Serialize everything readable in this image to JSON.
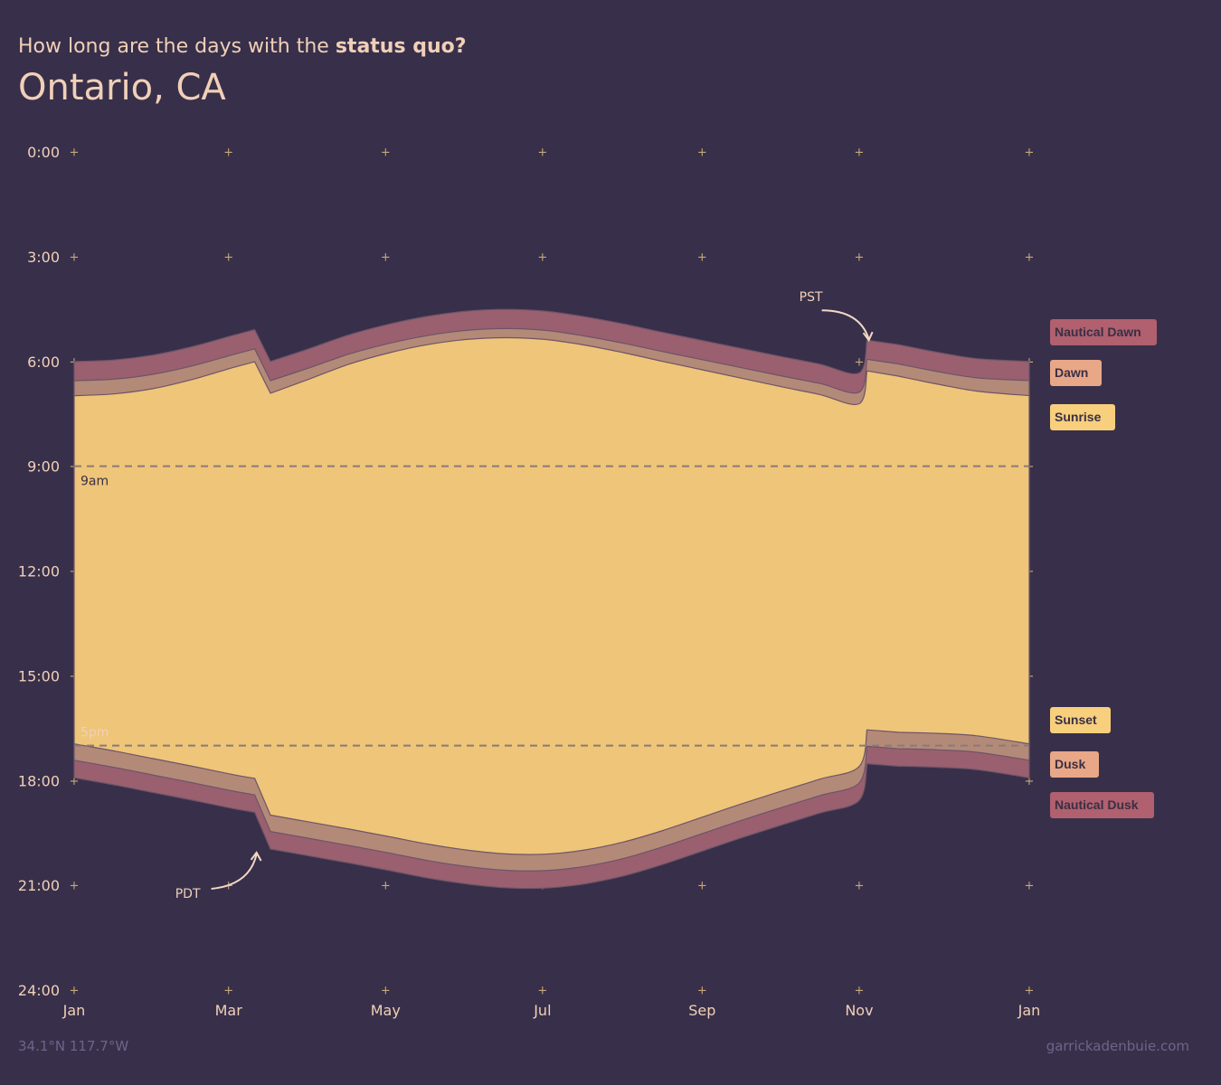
{
  "header": {
    "subtitle_pre": "How long are the days with the",
    "subtitle_bold": "status quo?",
    "title": "Ontario, CA"
  },
  "footer": {
    "coords": "34.1°N 117.7°W",
    "credit": "garrickadenbuie.com"
  },
  "colors": {
    "background": "#38304a",
    "nautical": "#9a6070",
    "civil": "#b38a78",
    "day": "#eec579",
    "band_outline": "#6e5468",
    "text": "#f1d0b8",
    "legend_nautical": "#b0606e",
    "legend_civil": "#e8a787",
    "legend_day": "#f7cf7d"
  },
  "chart_data": {
    "type": "area",
    "x_axis": {
      "ticks": [
        "Jan",
        "Mar",
        "May",
        "Jul",
        "Sep",
        "Nov",
        "Jan"
      ],
      "tick_days": [
        0,
        59,
        119,
        179,
        240,
        300,
        365
      ],
      "range_days": [
        0,
        365
      ]
    },
    "y_axis": {
      "reversed": true,
      "range_hours": [
        0,
        24
      ],
      "ticks": [
        "0:00",
        "3:00",
        "6:00",
        "9:00",
        "12:00",
        "15:00",
        "18:00",
        "21:00",
        "24:00"
      ],
      "tick_hours": [
        0,
        3,
        6,
        9,
        12,
        15,
        18,
        21,
        24
      ]
    },
    "dst_periods": [
      {
        "label": "PDT",
        "start_day": 69,
        "end_day": 303
      }
    ],
    "series_hours": {
      "day": [
        0,
        15,
        30,
        45,
        60,
        69,
        75,
        90,
        105,
        120,
        135,
        150,
        165,
        180,
        195,
        210,
        225,
        240,
        255,
        270,
        285,
        300,
        303,
        315,
        330,
        345,
        365
      ],
      "nautical_dawn": [
        6.0,
        5.96,
        5.82,
        5.58,
        5.27,
        5.09,
        6.0,
        5.63,
        5.24,
        4.94,
        4.71,
        4.56,
        4.51,
        4.56,
        4.72,
        4.93,
        5.17,
        5.4,
        5.63,
        5.86,
        6.08,
        6.33,
        5.39,
        5.52,
        5.74,
        5.92,
        6.0
      ],
      "civil_dawn": [
        6.55,
        6.51,
        6.37,
        6.13,
        5.82,
        5.64,
        6.55,
        6.18,
        5.79,
        5.49,
        5.26,
        5.11,
        5.06,
        5.11,
        5.27,
        5.48,
        5.72,
        5.95,
        6.18,
        6.41,
        6.63,
        6.88,
        5.94,
        6.07,
        6.29,
        6.47,
        6.55
      ],
      "sunrise": [
        6.98,
        6.93,
        6.78,
        6.52,
        6.19,
        6.01,
        6.91,
        6.5,
        6.08,
        5.76,
        5.52,
        5.37,
        5.32,
        5.37,
        5.53,
        5.75,
        6.0,
        6.24,
        6.48,
        6.72,
        6.95,
        7.21,
        6.27,
        6.42,
        6.65,
        6.85,
        6.98
      ],
      "sunset": [
        16.95,
        17.15,
        17.37,
        17.59,
        17.82,
        17.94,
        18.99,
        19.19,
        19.39,
        19.6,
        19.82,
        19.99,
        20.1,
        20.11,
        19.99,
        19.76,
        19.43,
        19.05,
        18.67,
        18.31,
        17.96,
        17.6,
        16.55,
        16.62,
        16.65,
        16.72,
        16.95
      ],
      "civil_dusk": [
        17.42,
        17.62,
        17.84,
        18.06,
        18.29,
        18.41,
        19.46,
        19.66,
        19.86,
        20.07,
        20.29,
        20.46,
        20.57,
        20.58,
        20.46,
        20.23,
        19.9,
        19.52,
        19.14,
        18.78,
        18.43,
        18.07,
        17.02,
        17.09,
        17.12,
        17.19,
        17.42
      ],
      "nautical_dusk": [
        17.92,
        18.12,
        18.34,
        18.56,
        18.79,
        18.91,
        19.96,
        20.16,
        20.36,
        20.57,
        20.79,
        20.96,
        21.07,
        21.08,
        20.96,
        20.73,
        20.4,
        20.02,
        19.64,
        19.28,
        18.93,
        18.57,
        17.52,
        17.59,
        17.62,
        17.69,
        17.92
      ]
    },
    "reference_lines": [
      {
        "label": "9am",
        "hour": 9
      },
      {
        "label": "5pm",
        "hour": 17
      }
    ],
    "annotations": [
      {
        "label": "PST",
        "day": 303
      },
      {
        "label": "PDT",
        "day": 69
      }
    ],
    "legend": [
      {
        "label": "Nautical Dawn",
        "color": "#b0606e"
      },
      {
        "label": "Dawn",
        "color": "#e8a787"
      },
      {
        "label": "Sunrise",
        "color": "#f7cf7d"
      },
      {
        "label": "Sunset",
        "color": "#f7cf7d"
      },
      {
        "label": "Dusk",
        "color": "#e8a787"
      },
      {
        "label": "Nautical Dusk",
        "color": "#b0606e"
      }
    ]
  }
}
